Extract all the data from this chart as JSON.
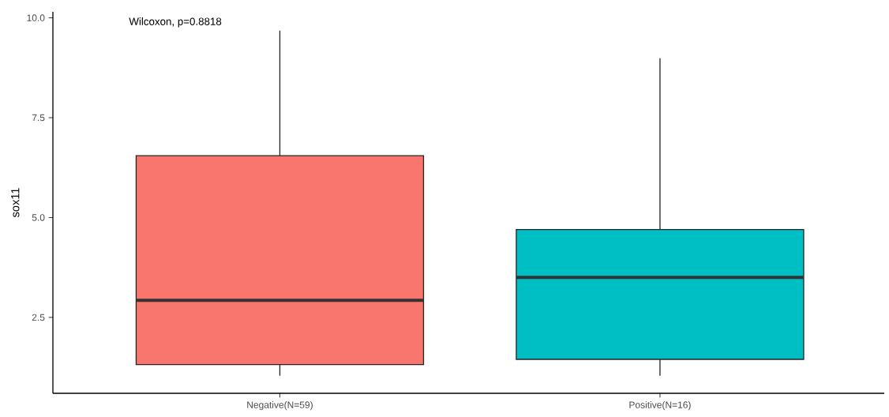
{
  "chart_data": {
    "type": "box",
    "ylabel": "sox11",
    "categories": [
      "Negative(N=59)",
      "Positive(N=16)"
    ],
    "colors": [
      "#f8766d",
      "#00bfc4"
    ],
    "boxes": [
      {
        "low": 1.04,
        "q1": 1.32,
        "median": 2.93,
        "q3": 6.55,
        "high": 9.68
      },
      {
        "low": 1.04,
        "q1": 1.45,
        "median": 3.5,
        "q3": 4.7,
        "high": 8.99
      }
    ],
    "ylim": [
      0.6,
      10.15
    ],
    "yticks": [
      2.5,
      {
        "value": 5,
        "label": "5.0"
      },
      7.5,
      {
        "value": 10,
        "label": "10.0"
      }
    ],
    "grid": false,
    "annotations": [
      "Wilcoxon, p=0.8818"
    ]
  }
}
